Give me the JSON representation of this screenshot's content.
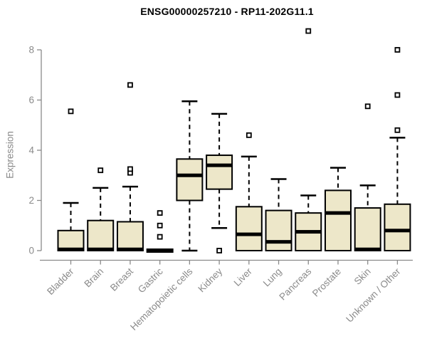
{
  "title": "ENSG00000257210 - RP11-202G11.1",
  "chart_data": {
    "type": "boxplot",
    "title": "ENSG00000257210 - RP11-202G11.1",
    "xlabel": "",
    "ylabel": "Expression",
    "ylim": [
      0,
      8
    ],
    "yticks": [
      0,
      2,
      4,
      6,
      8
    ],
    "grid": false,
    "legend": "none",
    "categories": [
      "Bladder",
      "Brain",
      "Breast",
      "Gastric",
      "Hematopoietic cells",
      "Kidney",
      "Liver",
      "Lung",
      "Pancreas",
      "Prostate",
      "Skin",
      "Unknown / Other"
    ],
    "boxes": [
      {
        "category": "Bladder",
        "whisker_low": 0,
        "q1": 0,
        "median": 0.05,
        "q3": 0.8,
        "whisker_high": 1.9,
        "outliers": [
          5.55
        ]
      },
      {
        "category": "Brain",
        "whisker_low": 0,
        "q1": 0,
        "median": 0.05,
        "q3": 1.2,
        "whisker_high": 2.5,
        "outliers": [
          3.2
        ]
      },
      {
        "category": "Breast",
        "whisker_low": 0,
        "q1": 0,
        "median": 0.05,
        "q3": 1.15,
        "whisker_high": 2.55,
        "outliers": [
          3.1,
          3.25,
          6.6
        ]
      },
      {
        "category": "Gastric",
        "whisker_low": 0,
        "q1": 0,
        "median": 0,
        "q3": 0,
        "whisker_high": 0,
        "outliers": [
          0.55,
          1.0,
          1.5
        ]
      },
      {
        "category": "Hematopoietic cells",
        "whisker_low": 0,
        "q1": 2.0,
        "median": 3.0,
        "q3": 3.65,
        "whisker_high": 5.95,
        "outliers": []
      },
      {
        "category": "Kidney",
        "whisker_low": 0.9,
        "q1": 2.45,
        "median": 3.4,
        "q3": 3.8,
        "whisker_high": 5.45,
        "outliers": [
          0
        ]
      },
      {
        "category": "Liver",
        "whisker_low": 0,
        "q1": 0,
        "median": 0.65,
        "q3": 1.75,
        "whisker_high": 3.75,
        "outliers": [
          4.6
        ]
      },
      {
        "category": "Lung",
        "whisker_low": 0,
        "q1": 0,
        "median": 0.35,
        "q3": 1.6,
        "whisker_high": 2.85,
        "outliers": []
      },
      {
        "category": "Pancreas",
        "whisker_low": 0,
        "q1": 0,
        "median": 0.75,
        "q3": 1.5,
        "whisker_high": 2.2,
        "outliers": [
          8.75
        ]
      },
      {
        "category": "Prostate",
        "whisker_low": 0,
        "q1": 0,
        "median": 1.5,
        "q3": 2.4,
        "whisker_high": 3.3,
        "outliers": []
      },
      {
        "category": "Skin",
        "whisker_low": 0,
        "q1": 0,
        "median": 0.05,
        "q3": 1.7,
        "whisker_high": 2.6,
        "outliers": [
          5.75
        ]
      },
      {
        "category": "Unknown / Other",
        "whisker_low": 0,
        "q1": 0,
        "median": 0.8,
        "q3": 1.85,
        "whisker_high": 4.5,
        "outliers": [
          4.8,
          6.2,
          8.0
        ]
      }
    ],
    "colors": {
      "box_fill": "#EDE7C9",
      "box_border": "#000000",
      "median": "#000000",
      "whisker": "#000000",
      "outlier_stroke": "#000000",
      "outlier_fill": "#ffffff",
      "axis": "#8a8a8a",
      "tick_label": "#8a8a8a",
      "title": "#000000",
      "background": "#ffffff"
    }
  }
}
